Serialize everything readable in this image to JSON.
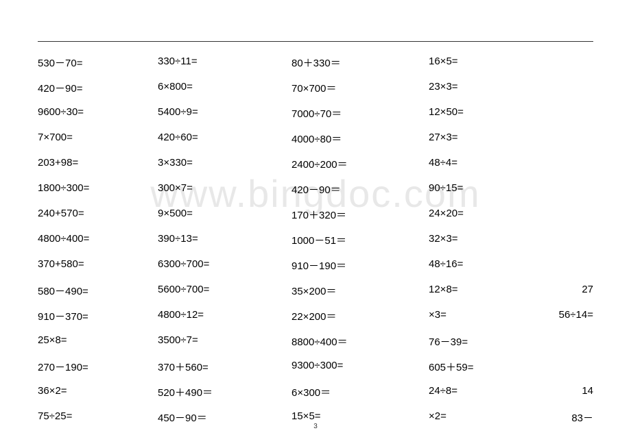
{
  "watermark": "www.bingdoc.com",
  "page_number": "3",
  "rows": [
    {
      "c1": "530－70=",
      "c2": "330÷11=",
      "c3": "80＋330＝",
      "c4": "16×5=",
      "c5": ""
    },
    {
      "c1": "420－90=",
      "c2": "6×800=",
      "c3": "70×700＝",
      "c4": "23×3=",
      "c5": ""
    },
    {
      "c1": "9600÷30=",
      "c2": "5400÷9=",
      "c3": "7000÷70＝",
      "c4": "12×50=",
      "c5": ""
    },
    {
      "c1": "7×700=",
      "c2": "420÷60=",
      "c3": "4000÷80＝",
      "c4": "27×3=",
      "c5": ""
    },
    {
      "c1": "203+98=",
      "c2": "3×330=",
      "c3": "2400÷200＝",
      "c4": "48÷4=",
      "c5": ""
    },
    {
      "c1": "1800÷300=",
      "c2": "300×7=",
      "c3": "420－90＝",
      "c4": "90÷15=",
      "c5": ""
    },
    {
      "c1": "240+570=",
      "c2": "9×500=",
      "c3": "170＋320＝",
      "c4": "24×20=",
      "c5": ""
    },
    {
      "c1": "4800÷400=",
      "c2": "390÷13=",
      "c3": "1000－51＝",
      "c4": "32×3=",
      "c5": ""
    },
    {
      "c1": "370+580=",
      "c2": "6300÷700=",
      "c3": "910－190＝",
      "c4": "48÷16=",
      "c5": ""
    },
    {
      "c1": "580－490=",
      "c2": "5600÷700=",
      "c3": "35×200＝",
      "c4": "12×8=",
      "c5": "27"
    },
    {
      "c1": "910－370=",
      "c2": "4800÷12=",
      "c3": "22×200＝",
      "c4": "×3=",
      "c5": "56÷14="
    },
    {
      "c1": "25×8=",
      "c2": "3500÷7=",
      "c3": "8800÷400＝",
      "c4": "76－39=",
      "c5": ""
    },
    {
      "c1": "270－190=",
      "c2": "370＋560=",
      "c3": "9300÷300=",
      "c4": "605＋59=",
      "c5": ""
    },
    {
      "c1": "36×2=",
      "c2": "520＋490＝",
      "c3": "6×300＝",
      "c4": "24÷8=",
      "c5": "14"
    },
    {
      "c1": "75÷25=",
      "c2": "450－90＝",
      "c3": "15×5=",
      "c4": "×2=",
      "c5": "83－"
    }
  ]
}
